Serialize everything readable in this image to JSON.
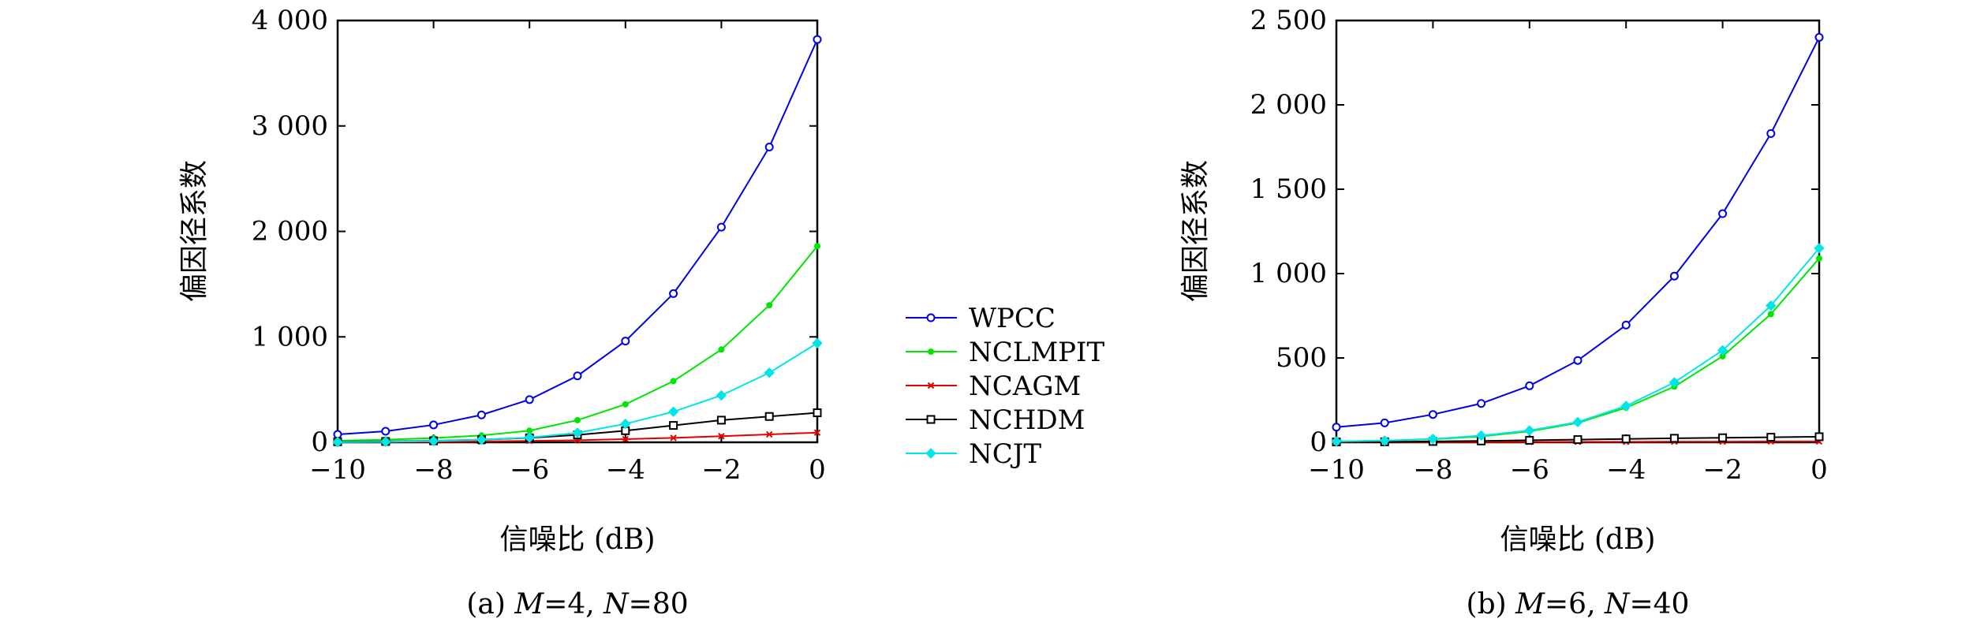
{
  "chart_data": [
    {
      "type": "line",
      "caption": "(a) M=4, N=80",
      "caption_parts": {
        "prefix": "(a) ",
        "m_var": "M",
        "m_val": "=4, ",
        "n_var": "N",
        "n_val": "=80"
      },
      "xlabel": "信噪比 (dB)",
      "ylabel": "偏因径系数",
      "x": [
        -10,
        -9,
        -8,
        -7,
        -6,
        -5,
        -4,
        -3,
        -2,
        -1,
        0
      ],
      "xlim": [
        -10,
        0
      ],
      "ylim": [
        0,
        4000
      ],
      "xticks": [
        -10,
        -8,
        -6,
        -4,
        -2,
        0
      ],
      "xtick_labels": [
        "−10",
        "−8",
        "−6",
        "−4",
        "−2",
        "0"
      ],
      "yticks": [
        0,
        1000,
        2000,
        3000,
        4000
      ],
      "ytick_labels": [
        "0",
        "1 000",
        "2 000",
        "3 000",
        "4 000"
      ],
      "series": [
        {
          "name": "WPCC",
          "color": "#0000e6",
          "marker": "circle",
          "values": [
            75,
            105,
            165,
            260,
            405,
            630,
            960,
            1410,
            2040,
            2800,
            3820
          ]
        },
        {
          "name": "NCLMPIT",
          "color": "#00e600",
          "marker": "dot",
          "values": [
            15,
            25,
            40,
            65,
            110,
            210,
            360,
            580,
            880,
            1300,
            1860
          ]
        },
        {
          "name": "NCAGM",
          "color": "#e60000",
          "marker": "x",
          "values": [
            2,
            3,
            5,
            8,
            13,
            20,
            30,
            42,
            58,
            75,
            92
          ]
        },
        {
          "name": "NCHDM",
          "color": "#000000",
          "marker": "square",
          "values": [
            5,
            8,
            14,
            25,
            42,
            70,
            110,
            160,
            210,
            245,
            280
          ]
        },
        {
          "name": "NCJT",
          "color": "#00e6e6",
          "marker": "diamond",
          "values": [
            2,
            5,
            12,
            25,
            45,
            90,
            175,
            290,
            445,
            660,
            940
          ]
        }
      ]
    },
    {
      "type": "line",
      "caption": "(b) M=6, N=40",
      "caption_parts": {
        "prefix": "(b) ",
        "m_var": "M",
        "m_val": "=6, ",
        "n_var": "N",
        "n_val": "=40"
      },
      "xlabel": "信噪比 (dB)",
      "ylabel": "偏因径系数",
      "x": [
        -10,
        -9,
        -8,
        -7,
        -6,
        -5,
        -4,
        -3,
        -2,
        -1,
        0
      ],
      "xlim": [
        -10,
        0
      ],
      "ylim": [
        0,
        2500
      ],
      "xticks": [
        -10,
        -8,
        -6,
        -4,
        -2,
        0
      ],
      "xtick_labels": [
        "−10",
        "−8",
        "−6",
        "−4",
        "−2",
        "0"
      ],
      "yticks": [
        0,
        500,
        1000,
        1500,
        2000,
        2500
      ],
      "ytick_labels": [
        "0",
        "500",
        "1 000",
        "1 500",
        "2 000",
        "2 500"
      ],
      "series": [
        {
          "name": "WPCC",
          "color": "#0000e6",
          "marker": "circle",
          "values": [
            90,
            115,
            165,
            230,
            335,
            485,
            695,
            985,
            1355,
            1830,
            2400
          ]
        },
        {
          "name": "NCLMPIT",
          "color": "#00e600",
          "marker": "dot",
          "values": [
            5,
            10,
            18,
            35,
            65,
            115,
            205,
            330,
            510,
            760,
            1090
          ]
        },
        {
          "name": "NCAGM",
          "color": "#e60000",
          "marker": "x",
          "values": [
            0,
            1,
            1,
            2,
            2,
            3,
            3,
            4,
            4,
            5,
            5
          ]
        },
        {
          "name": "NCHDM",
          "color": "#000000",
          "marker": "square",
          "values": [
            2,
            3,
            5,
            8,
            12,
            16,
            20,
            24,
            27,
            30,
            33
          ]
        },
        {
          "name": "NCJT",
          "color": "#00e6e6",
          "marker": "diamond",
          "values": [
            5,
            10,
            20,
            40,
            70,
            120,
            215,
            355,
            545,
            810,
            1150
          ]
        }
      ]
    }
  ],
  "legend": {
    "items": [
      "WPCC",
      "NCLMPIT",
      "NCAGM",
      "NCHDM",
      "NCJT"
    ]
  }
}
